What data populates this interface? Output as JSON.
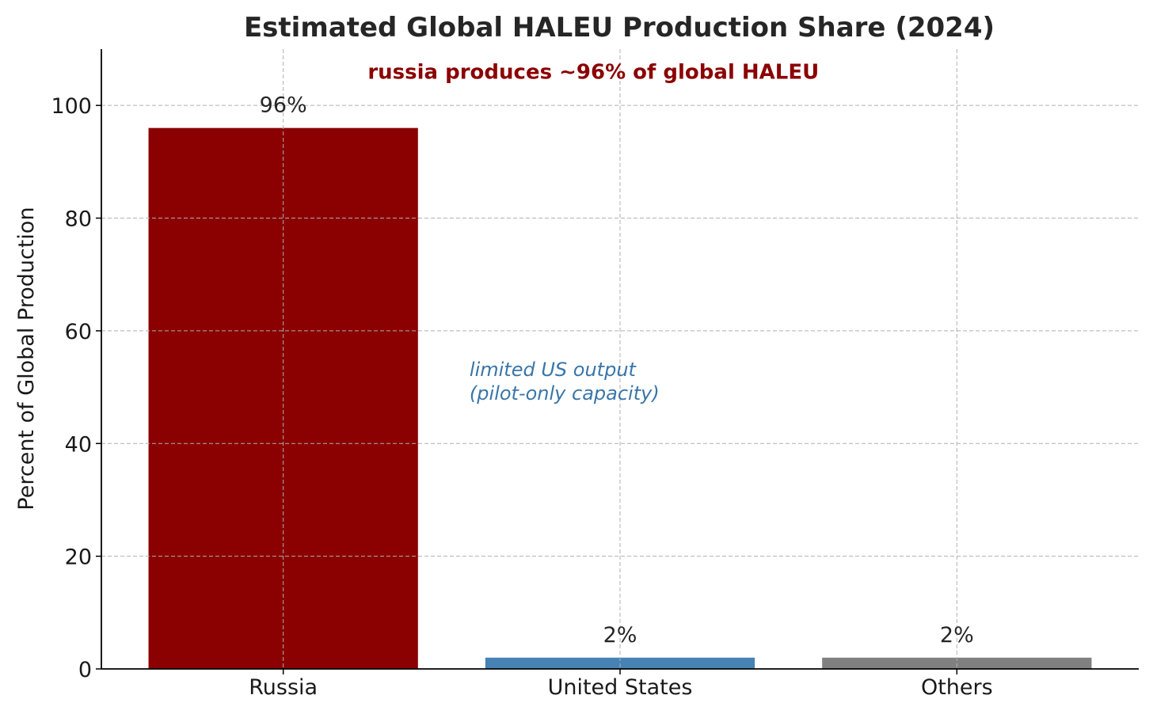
{
  "chart_data": {
    "type": "bar",
    "title": "Estimated Global HALEU Production Share (2024)",
    "xlabel": "",
    "ylabel": "Percent of Global Production",
    "categories": [
      "Russia",
      "United States",
      "Others"
    ],
    "values": [
      96,
      2,
      2
    ],
    "data_labels": [
      "96%",
      "2%",
      "2%"
    ],
    "colors": [
      "#8b0000",
      "#4682b4",
      "#808080"
    ],
    "ylim": [
      0,
      110
    ],
    "yticks": [
      0,
      20,
      40,
      60,
      80,
      100
    ],
    "grid": true,
    "annotations": [
      {
        "text": "russia produces ~96% of global HALEU",
        "color": "#8b0000",
        "x": 0.5,
        "y": 106,
        "style": "bold"
      },
      {
        "text_lines": [
          "limited US output",
          "(pilot-only capacity)"
        ],
        "color": "#3a75a8",
        "x": 0.8,
        "y": 52,
        "style": "italic"
      }
    ]
  }
}
